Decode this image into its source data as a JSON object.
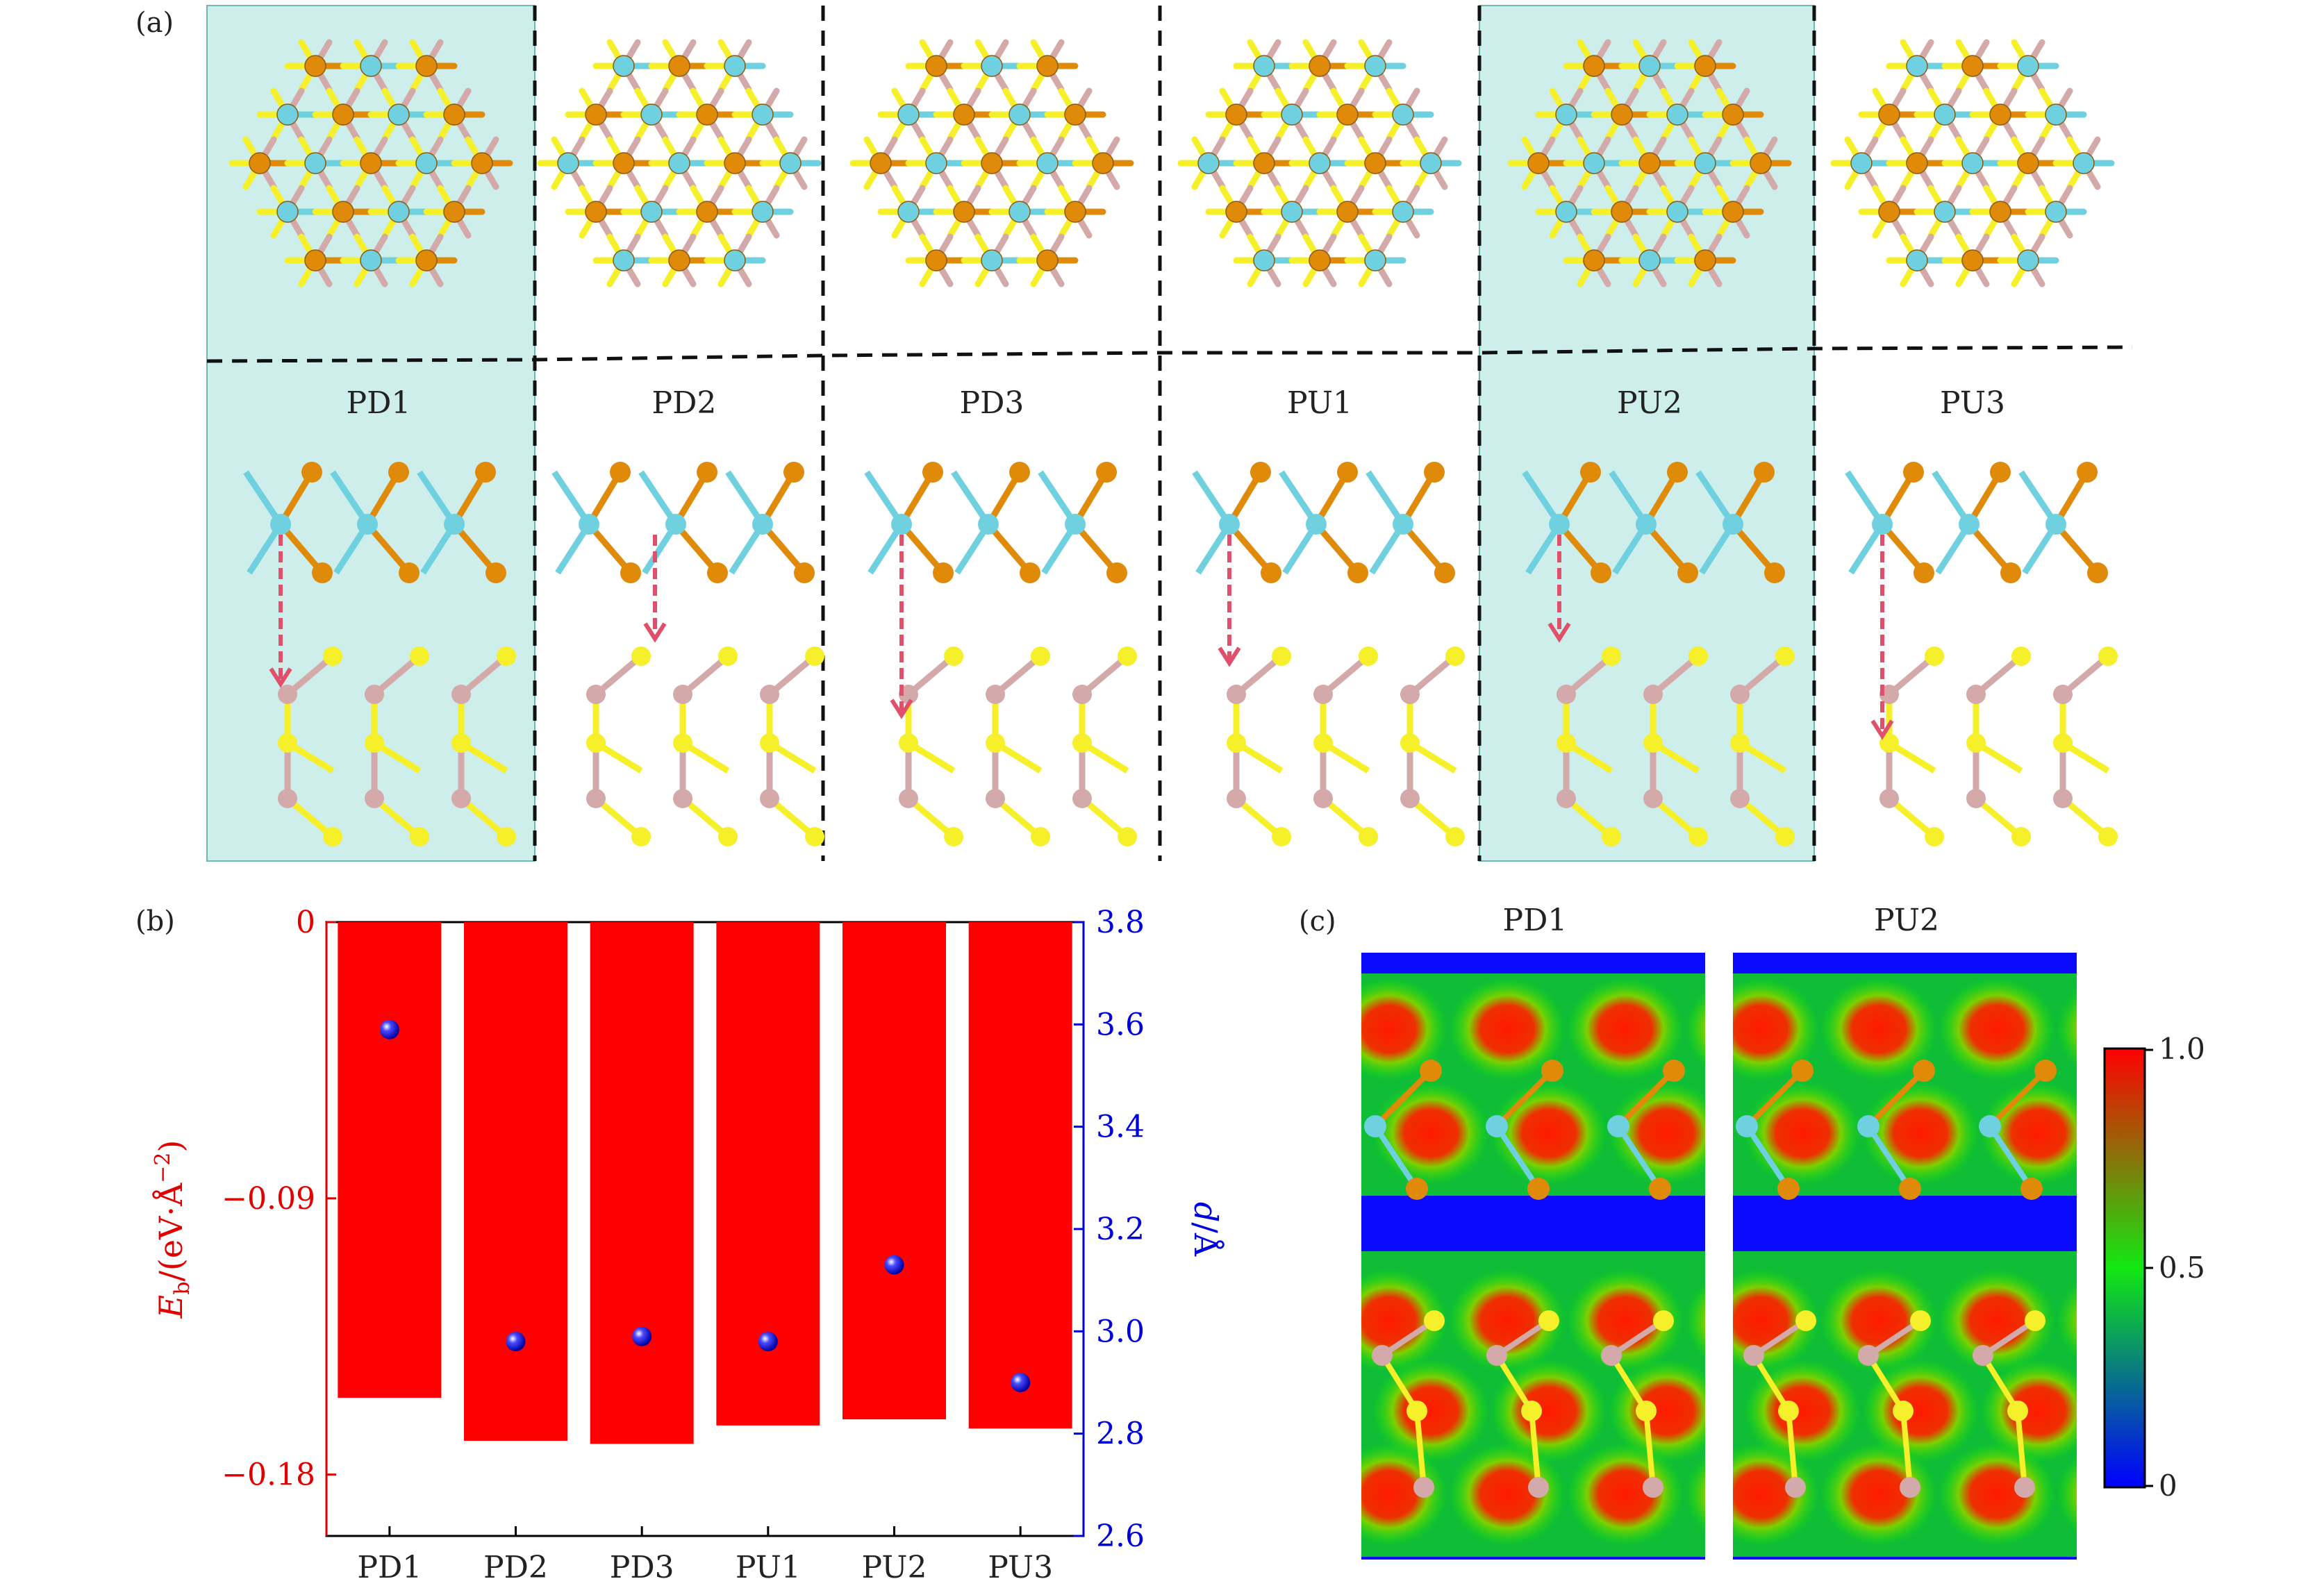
{
  "panel_labels": {
    "a": "(a)",
    "b": "(b)",
    "c": "(c)"
  },
  "panel_a": {
    "configs": [
      "PD1",
      "PD2",
      "PD3",
      "PU1",
      "PU2",
      "PU3"
    ],
    "highlighted": [
      "PD1",
      "PU2"
    ],
    "highlight_color": "#cdeeea"
  },
  "colors": {
    "top_metal": "#6fd0e0",
    "top_chalcogen": "#e08a0a",
    "bottom_metal": "#d4a9a9",
    "bottom_chalcogen": "#f5f02a",
    "arrow": "#e0506a",
    "bar": "#ff0000",
    "marker": "#1010c8",
    "left_axis": "#e00000",
    "right_axis": "#0000dd"
  },
  "chart_data": {
    "type": "bar",
    "categories": [
      "PD1",
      "PD2",
      "PD3",
      "PU1",
      "PU2",
      "PU3"
    ],
    "series": [
      {
        "values": [
          -0.155,
          -0.169,
          -0.17,
          -0.164,
          -0.162,
          -0.165
        ],
        "axis": "left",
        "kind": "bar"
      },
      {
        "values": [
          3.59,
          2.98,
          2.99,
          2.98,
          3.13,
          2.9
        ],
        "axis": "right",
        "kind": "scatter"
      }
    ],
    "ylabel_left": "E_b/(eV·Å⁻²)",
    "ylabel_right": "d/Å",
    "ylim_left": [
      -0.2,
      0
    ],
    "ylim_right": [
      2.6,
      3.8
    ],
    "left_ticks": [
      "0",
      "−0.09",
      "−0.18"
    ],
    "left_tick_values": [
      0,
      -0.09,
      -0.18
    ],
    "right_ticks": [
      "3.8",
      "3.6",
      "3.4",
      "3.2",
      "3.0",
      "2.8",
      "2.6"
    ],
    "right_tick_values": [
      3.8,
      3.6,
      3.4,
      3.2,
      3.0,
      2.8,
      2.6
    ]
  },
  "panel_c": {
    "titles": [
      "PD1",
      "PU2"
    ],
    "colorbar_ticks": [
      "1.0",
      "0.5",
      "0"
    ]
  }
}
